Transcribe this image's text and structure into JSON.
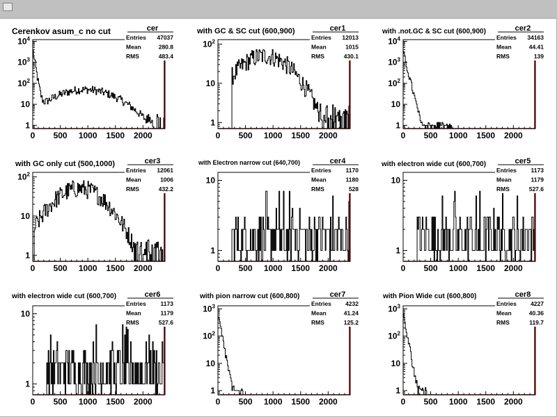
{
  "window": {
    "title": ""
  },
  "stats_labels": {
    "entries": "Entries",
    "mean": "Mean",
    "rms": "RMS"
  },
  "colors": {
    "hist": "#000000",
    "overflow": "#8b0000",
    "frame": "#000000"
  },
  "chart_data": [
    {
      "type": "histogram",
      "name": "cer",
      "title": "Cerenkov asum_c no cut",
      "entries": "47037",
      "mean": "280.8",
      "rms": "483.4",
      "log_y": true,
      "xlim": [
        0,
        2400
      ],
      "ylim": [
        0.7,
        12000
      ],
      "x_ticks": [
        0,
        500,
        1000,
        1500,
        2000
      ],
      "y_ticks": [
        1,
        10,
        100,
        1000,
        10000
      ],
      "shape": "lowpeak_bump",
      "peak": 4000
    },
    {
      "type": "histogram",
      "name": "cer1",
      "title": "with GC & SC cut (600,900)",
      "entries": "12013",
      "mean": "1015",
      "rms": "430.1",
      "log_y": true,
      "xlim": [
        0,
        2400
      ],
      "ylim": [
        0.7,
        130
      ],
      "x_ticks": [
        0,
        500,
        1000,
        1500,
        2000
      ],
      "y_ticks": [
        1,
        10,
        100
      ],
      "shape": "bell",
      "peak": 50,
      "center": 850,
      "start": 250
    },
    {
      "type": "histogram",
      "name": "cer2",
      "title": "with .not.GC & SC cut (600,900)",
      "entries": "34163",
      "mean": "44.41",
      "rms": "139",
      "log_y": true,
      "xlim": [
        0,
        2400
      ],
      "ylim": [
        0.7,
        12000
      ],
      "x_ticks": [
        0,
        500,
        1000,
        1500,
        2000
      ],
      "y_ticks": [
        1,
        10,
        100,
        1000,
        10000
      ],
      "shape": "decay",
      "peak": 3000,
      "tail_end": 950
    },
    {
      "type": "histogram",
      "name": "cer3",
      "title": "with GC only cut (500,1000)",
      "entries": "12061",
      "mean": "1006",
      "rms": "432.2",
      "log_y": true,
      "xlim": [
        0,
        2400
      ],
      "ylim": [
        0.7,
        130
      ],
      "x_ticks": [
        0,
        500,
        1000,
        1500,
        2000
      ],
      "y_ticks": [
        1,
        10,
        100
      ],
      "shape": "bell",
      "peak": 50,
      "center": 850,
      "start": 30
    },
    {
      "type": "histogram",
      "name": "cer4",
      "title": "with Electron narrow cut (640,700)",
      "entries": "1170",
      "mean": "1180",
      "rms": "528",
      "log_y": true,
      "xlim": [
        0,
        2400
      ],
      "ylim": [
        0.7,
        13
      ],
      "x_ticks": [
        0,
        500,
        1000,
        1500,
        2000
      ],
      "y_ticks": [
        1,
        10
      ],
      "shape": "flat_sparse",
      "start": 250
    },
    {
      "type": "histogram",
      "name": "cer5",
      "title": "with electron wide cut (600,700)",
      "entries": "1173",
      "mean": "1179",
      "rms": "527.6",
      "log_y": true,
      "xlim": [
        0,
        2400
      ],
      "ylim": [
        0.7,
        13
      ],
      "x_ticks": [
        0,
        500,
        1000,
        1500,
        2000
      ],
      "y_ticks": [
        1,
        10
      ],
      "shape": "flat_sparse",
      "start": 250
    },
    {
      "type": "histogram",
      "name": "cer6",
      "title": "with electron wide cut (600,700)",
      "entries": "1173",
      "mean": "1179",
      "rms": "527.6",
      "log_y": true,
      "xlim": [
        0,
        2400
      ],
      "ylim": [
        0.7,
        13
      ],
      "x_ticks": [
        0,
        500,
        1000,
        1500,
        2000
      ],
      "y_ticks": [
        1,
        10
      ],
      "shape": "flat_sparse",
      "start": 250
    },
    {
      "type": "histogram",
      "name": "cer7",
      "title": "with pion narrow cut (600,800)",
      "entries": "4232",
      "mean": "41.24",
      "rms": "125.2",
      "log_y": true,
      "xlim": [
        0,
        2400
      ],
      "ylim": [
        0.7,
        1300
      ],
      "x_ticks": [
        0,
        500,
        1000,
        1500,
        2000
      ],
      "y_ticks": [
        1,
        10,
        100,
        1000
      ],
      "shape": "decay",
      "peak": 600,
      "tail_end": 450
    },
    {
      "type": "histogram",
      "name": "cer8",
      "title": "with Pion Wide cut (600,800)",
      "entries": "4227",
      "mean": "40.36",
      "rms": "119.7",
      "log_y": true,
      "xlim": [
        0,
        2400
      ],
      "ylim": [
        0.7,
        1300
      ],
      "x_ticks": [
        0,
        500,
        1000,
        1500,
        2000
      ],
      "y_ticks": [
        1,
        10,
        100,
        1000
      ],
      "shape": "decay",
      "peak": 600,
      "tail_end": 450
    }
  ]
}
